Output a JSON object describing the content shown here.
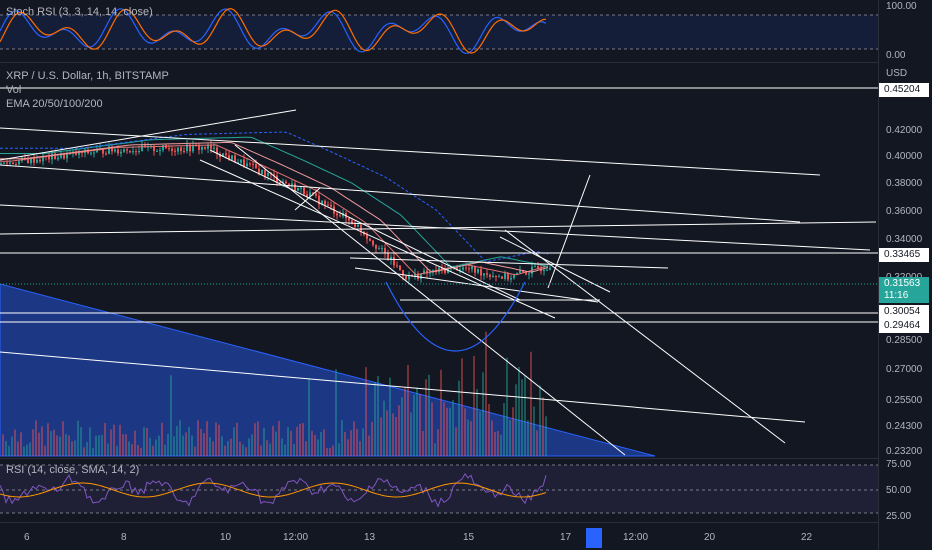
{
  "stoch": {
    "label": "Stoch RSI (3, 3, 14, 14, close)",
    "ticks": [
      "100.00",
      "0.00"
    ]
  },
  "main": {
    "title": "XRP / U.S. Dollar, 1h, BITSTAMP",
    "vol_label": "Vol",
    "ema_label": "EMA 20/50/100/200",
    "currency": "USD"
  },
  "price_axis": {
    "ticks": [
      "0.42000",
      "0.40000",
      "0.38000",
      "0.36000",
      "0.34000",
      "0.32000",
      "0.28500",
      "0.27000",
      "0.25500",
      "0.24300",
      "0.23200"
    ],
    "boxes": [
      "0.45204",
      "0.33465",
      "0.30054",
      "0.29464"
    ],
    "current_price": "0.31563",
    "countdown": "11:16"
  },
  "rsi": {
    "label": "RSI (14, close, SMA, 14, 2)",
    "ticks": [
      "75.00",
      "50.00",
      "25.00"
    ]
  },
  "time_axis": [
    "6",
    "8",
    "10",
    "12:00",
    "13",
    "15",
    "17",
    "12:00",
    "20",
    "22"
  ],
  "colors": {
    "up": "#26a69a",
    "down": "#ef5350",
    "rsi": "#7e57c2",
    "rsi_ma": "#ff9800",
    "stoch_k": "#2962ff",
    "stoch_d": "#ff6d00",
    "trend": "#ffffff",
    "ema": "#2962ff"
  },
  "chart_data": {
    "type": "line",
    "title": "XRP / U.S. Dollar, 1h, BITSTAMP",
    "x": [
      "6",
      "7",
      "8",
      "9",
      "10",
      "11",
      "12",
      "13",
      "14",
      "15",
      "16",
      "16.5"
    ],
    "series": [
      {
        "name": "XRP / U.S. Dollar",
        "values": [
          0.393,
          0.398,
          0.403,
          0.404,
          0.405,
          0.388,
          0.37,
          0.345,
          0.305,
          0.313,
          0.305,
          0.316
        ]
      }
    ],
    "ylim": [
      0.225,
      0.455
    ],
    "ylabel": "USD"
  }
}
